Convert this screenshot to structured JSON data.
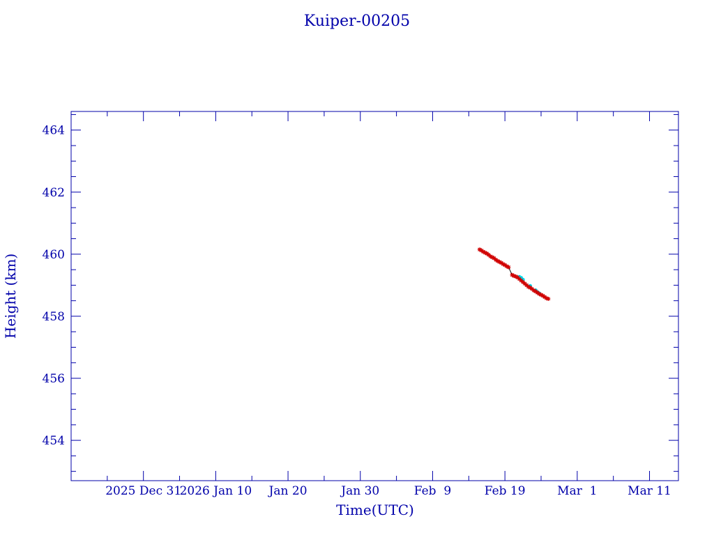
{
  "chart_data": {
    "type": "scatter",
    "title": "Kuiper-00205",
    "xlabel": "Time(UTC)",
    "ylabel": "Height (km)",
    "x_type": "date",
    "xlim": [
      "2025-12-21",
      "2026-03-15"
    ],
    "ylim": [
      452.7,
      464.6
    ],
    "x_tick_labels": [
      {
        "date": "2025-12-31",
        "label": "2025 Dec 31"
      },
      {
        "date": "2026-01-10",
        "label": "2026 Jan 10"
      },
      {
        "date": "2026-01-20",
        "label": "Jan 20"
      },
      {
        "date": "2026-01-30",
        "label": "Jan 30"
      },
      {
        "date": "2026-02-09",
        "label": "Feb  9"
      },
      {
        "date": "2026-02-19",
        "label": "Feb 19"
      },
      {
        "date": "2026-03-01",
        "label": "Mar  1"
      },
      {
        "date": "2026-03-11",
        "label": "Mar 11"
      }
    ],
    "y_ticks": [
      454,
      456,
      458,
      460,
      462,
      464
    ],
    "grid": false,
    "series": [
      {
        "color": "#d00000",
        "marker": "star",
        "points": [
          {
            "x": "2026-02-15T12:00",
            "y": 460.15
          },
          {
            "x": "2026-02-15T18:00",
            "y": 460.12
          },
          {
            "x": "2026-02-16T00:00",
            "y": 460.08
          },
          {
            "x": "2026-02-16T06:00",
            "y": 460.05
          },
          {
            "x": "2026-02-16T12:00",
            "y": 460.02
          },
          {
            "x": "2026-02-16T18:00",
            "y": 459.98
          },
          {
            "x": "2026-02-17T00:00",
            "y": 459.93
          },
          {
            "x": "2026-02-17T06:00",
            "y": 459.9
          },
          {
            "x": "2026-02-17T12:00",
            "y": 459.87
          },
          {
            "x": "2026-02-17T18:00",
            "y": 459.82
          },
          {
            "x": "2026-02-18T00:00",
            "y": 459.78
          },
          {
            "x": "2026-02-18T06:00",
            "y": 459.75
          },
          {
            "x": "2026-02-18T12:00",
            "y": 459.72
          },
          {
            "x": "2026-02-18T18:00",
            "y": 459.68
          },
          {
            "x": "2026-02-19T00:00",
            "y": 459.65
          },
          {
            "x": "2026-02-19T06:00",
            "y": 459.61
          },
          {
            "x": "2026-02-19T12:00",
            "y": 459.58
          },
          {
            "x": "2026-02-20T00:00",
            "y": 459.33
          },
          {
            "x": "2026-02-20T06:00",
            "y": 459.3
          },
          {
            "x": "2026-02-20T12:00",
            "y": 459.28
          },
          {
            "x": "2026-02-20T18:00",
            "y": 459.25
          },
          {
            "x": "2026-02-21T00:00",
            "y": 459.2
          },
          {
            "x": "2026-02-21T06:00",
            "y": 459.15
          },
          {
            "x": "2026-02-21T12:00",
            "y": 459.1
          },
          {
            "x": "2026-02-21T18:00",
            "y": 459.05
          },
          {
            "x": "2026-02-22T00:00",
            "y": 459.0
          },
          {
            "x": "2026-02-22T06:00",
            "y": 458.95
          },
          {
            "x": "2026-02-22T12:00",
            "y": 458.92
          },
          {
            "x": "2026-02-22T18:00",
            "y": 458.88
          },
          {
            "x": "2026-02-23T00:00",
            "y": 458.83
          },
          {
            "x": "2026-02-23T06:00",
            "y": 458.8
          },
          {
            "x": "2026-02-23T12:00",
            "y": 458.76
          },
          {
            "x": "2026-02-23T18:00",
            "y": 458.72
          },
          {
            "x": "2026-02-24T00:00",
            "y": 458.69
          },
          {
            "x": "2026-02-24T06:00",
            "y": 458.66
          },
          {
            "x": "2026-02-24T12:00",
            "y": 458.62
          },
          {
            "x": "2026-02-24T18:00",
            "y": 458.58
          },
          {
            "x": "2026-02-25T00:00",
            "y": 458.56
          }
        ]
      },
      {
        "color": "#00d8e8",
        "marker": "dot",
        "points": [
          {
            "x": "2026-02-21T00:00",
            "y": 459.27
          },
          {
            "x": "2026-02-21T06:00",
            "y": 459.24
          },
          {
            "x": "2026-02-21T12:00",
            "y": 459.18
          },
          {
            "x": "2026-02-22T12:00",
            "y": 458.98
          },
          {
            "x": "2026-02-23T06:00",
            "y": 458.84
          },
          {
            "x": "2026-02-23T12:00",
            "y": 458.78
          },
          {
            "x": "2026-02-23T18:00",
            "y": 458.74
          }
        ]
      }
    ],
    "connector": {
      "color": "#000000",
      "points": [
        {
          "x": "2026-02-19T12:00",
          "y": 459.58
        },
        {
          "x": "2026-02-20T00:00",
          "y": 459.33
        }
      ]
    }
  }
}
